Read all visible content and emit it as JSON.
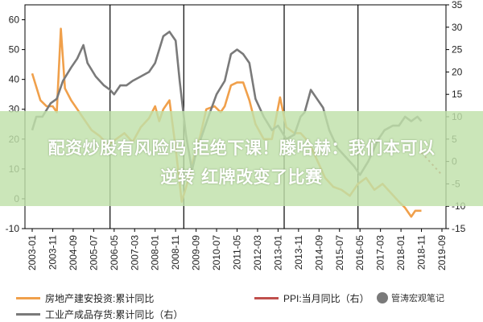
{
  "chart_data": {
    "type": "line",
    "x_ticks": [
      "2003-01",
      "2003-11",
      "2004-09",
      "2005-07",
      "2006-05",
      "2007-03",
      "2008-01",
      "2008-11",
      "2009-09",
      "2010-07",
      "2011-05",
      "2012-03",
      "2013-01",
      "2013-11",
      "2014-09",
      "2015-07",
      "2016-05",
      "2017-03",
      "2018-01",
      "2018-11",
      "2019-09"
    ],
    "y_left": {
      "ylim": [
        -10,
        65
      ],
      "ticks": [
        -10,
        0,
        10,
        20,
        30,
        40,
        50,
        60
      ]
    },
    "y_right": {
      "ylim": [
        -15,
        35
      ],
      "ticks": [
        -15,
        -10,
        -5,
        0,
        5,
        10,
        15,
        20,
        25,
        30,
        35
      ]
    },
    "grid": false,
    "legend_placement": "bottom",
    "series": [
      {
        "name": "房地产建安投资:累计同比",
        "axis": "left",
        "color": "#f0a04b",
        "points": [
          [
            "2003-01",
            42
          ],
          [
            "2003-05",
            33
          ],
          [
            "2003-08",
            31
          ],
          [
            "2003-11",
            31
          ],
          [
            "2004-01",
            29
          ],
          [
            "2004-03",
            57
          ],
          [
            "2004-05",
            37
          ],
          [
            "2004-08",
            33
          ],
          [
            "2004-11",
            30
          ],
          [
            "2005-02",
            27
          ],
          [
            "2005-06",
            23
          ],
          [
            "2005-10",
            21
          ],
          [
            "2006-02",
            18
          ],
          [
            "2006-06",
            20
          ],
          [
            "2006-10",
            22
          ],
          [
            "2007-02",
            19
          ],
          [
            "2007-06",
            24
          ],
          [
            "2007-10",
            27
          ],
          [
            "2008-01",
            31
          ],
          [
            "2008-03",
            26
          ],
          [
            "2008-05",
            30
          ],
          [
            "2008-08",
            33
          ],
          [
            "2008-11",
            17
          ],
          [
            "2009-02",
            -1
          ],
          [
            "2009-05",
            6
          ],
          [
            "2009-08",
            14
          ],
          [
            "2009-11",
            21
          ],
          [
            "2010-02",
            30
          ],
          [
            "2010-06",
            31
          ],
          [
            "2010-09",
            29
          ],
          [
            "2010-11",
            31
          ],
          [
            "2011-02",
            38
          ],
          [
            "2011-05",
            39
          ],
          [
            "2011-08",
            39
          ],
          [
            "2011-11",
            33
          ],
          [
            "2012-02",
            25
          ],
          [
            "2012-06",
            20
          ],
          [
            "2012-10",
            20
          ],
          [
            "2013-02",
            34
          ],
          [
            "2013-05",
            24
          ],
          [
            "2013-09",
            22
          ],
          [
            "2013-12",
            22
          ],
          [
            "2014-04",
            19
          ],
          [
            "2014-08",
            13
          ],
          [
            "2014-12",
            7
          ],
          [
            "2015-04",
            4
          ],
          [
            "2015-08",
            3
          ],
          [
            "2015-12",
            1
          ],
          [
            "2016-04",
            5
          ],
          [
            "2016-08",
            7
          ],
          [
            "2016-12",
            3
          ],
          [
            "2017-04",
            5
          ],
          [
            "2017-08",
            2
          ],
          [
            "2017-12",
            -1
          ],
          [
            "2018-03",
            -3
          ],
          [
            "2018-06",
            -6
          ],
          [
            "2018-08",
            -4
          ],
          [
            "2018-11",
            -4
          ]
        ]
      },
      {
        "name": "工业产成品存货:累计同比（右）",
        "axis": "right",
        "color": "#7a7a7a",
        "points": [
          [
            "2003-01",
            7
          ],
          [
            "2003-03",
            10
          ],
          [
            "2003-06",
            10
          ],
          [
            "2003-10",
            13
          ],
          [
            "2004-01",
            14
          ],
          [
            "2004-04",
            18
          ],
          [
            "2004-08",
            21
          ],
          [
            "2004-11",
            23
          ],
          [
            "2005-02",
            26
          ],
          [
            "2005-04",
            22
          ],
          [
            "2005-08",
            19
          ],
          [
            "2005-12",
            17
          ],
          [
            "2006-03",
            16
          ],
          [
            "2006-05",
            15
          ],
          [
            "2006-08",
            17
          ],
          [
            "2006-11",
            17
          ],
          [
            "2007-02",
            18
          ],
          [
            "2007-06",
            19
          ],
          [
            "2007-10",
            20
          ],
          [
            "2008-01",
            22
          ],
          [
            "2008-05",
            28
          ],
          [
            "2008-08",
            29
          ],
          [
            "2008-11",
            27
          ],
          [
            "2009-01",
            18
          ],
          [
            "2009-04",
            6
          ],
          [
            "2009-07",
            -2
          ],
          [
            "2009-09",
            2
          ],
          [
            "2009-12",
            6
          ],
          [
            "2010-03",
            10
          ],
          [
            "2010-07",
            15
          ],
          [
            "2010-11",
            18
          ],
          [
            "2011-02",
            24
          ],
          [
            "2011-05",
            25
          ],
          [
            "2011-08",
            24
          ],
          [
            "2011-11",
            22
          ],
          [
            "2012-02",
            14
          ],
          [
            "2012-06",
            10
          ],
          [
            "2012-10",
            7
          ],
          [
            "2013-01",
            8
          ],
          [
            "2013-05",
            5
          ],
          [
            "2013-09",
            6
          ],
          [
            "2013-12",
            10
          ],
          [
            "2014-02",
            11
          ],
          [
            "2014-05",
            16
          ],
          [
            "2014-08",
            14
          ],
          [
            "2014-11",
            12
          ],
          [
            "2015-02",
            7
          ],
          [
            "2015-06",
            3
          ],
          [
            "2015-10",
            1
          ],
          [
            "2016-02",
            -1
          ],
          [
            "2016-05",
            -3
          ],
          [
            "2016-09",
            0
          ],
          [
            "2016-12",
            3
          ],
          [
            "2017-02",
            5
          ],
          [
            "2017-05",
            7
          ],
          [
            "2017-09",
            8
          ],
          [
            "2017-12",
            8
          ],
          [
            "2018-03",
            10
          ],
          [
            "2018-06",
            9
          ],
          [
            "2018-09",
            10
          ],
          [
            "2018-11",
            9
          ]
        ]
      },
      {
        "name": "PPI:当月同比（右）",
        "axis": "right",
        "color": "#c0504d",
        "dashed": true,
        "points": [
          [
            "2018-11",
            2
          ],
          [
            "2019-01",
            1
          ],
          [
            "2019-03",
            0
          ],
          [
            "2019-05",
            -1
          ],
          [
            "2019-07",
            -2
          ],
          [
            "2019-09",
            -3
          ]
        ]
      }
    ]
  },
  "banner": {
    "line1": "配资炒股有风险吗 拒绝下课！滕哈赫：我们本可以",
    "line2": "逆转 红牌改变了比赛"
  },
  "legend": {
    "item1": "房地产建安投资:累计同比",
    "item2": "PPI:当月同比（右）",
    "item3": "工业产成品存货:累计同比（右）"
  },
  "watermark": {
    "text": "管涛宏观笔记"
  }
}
